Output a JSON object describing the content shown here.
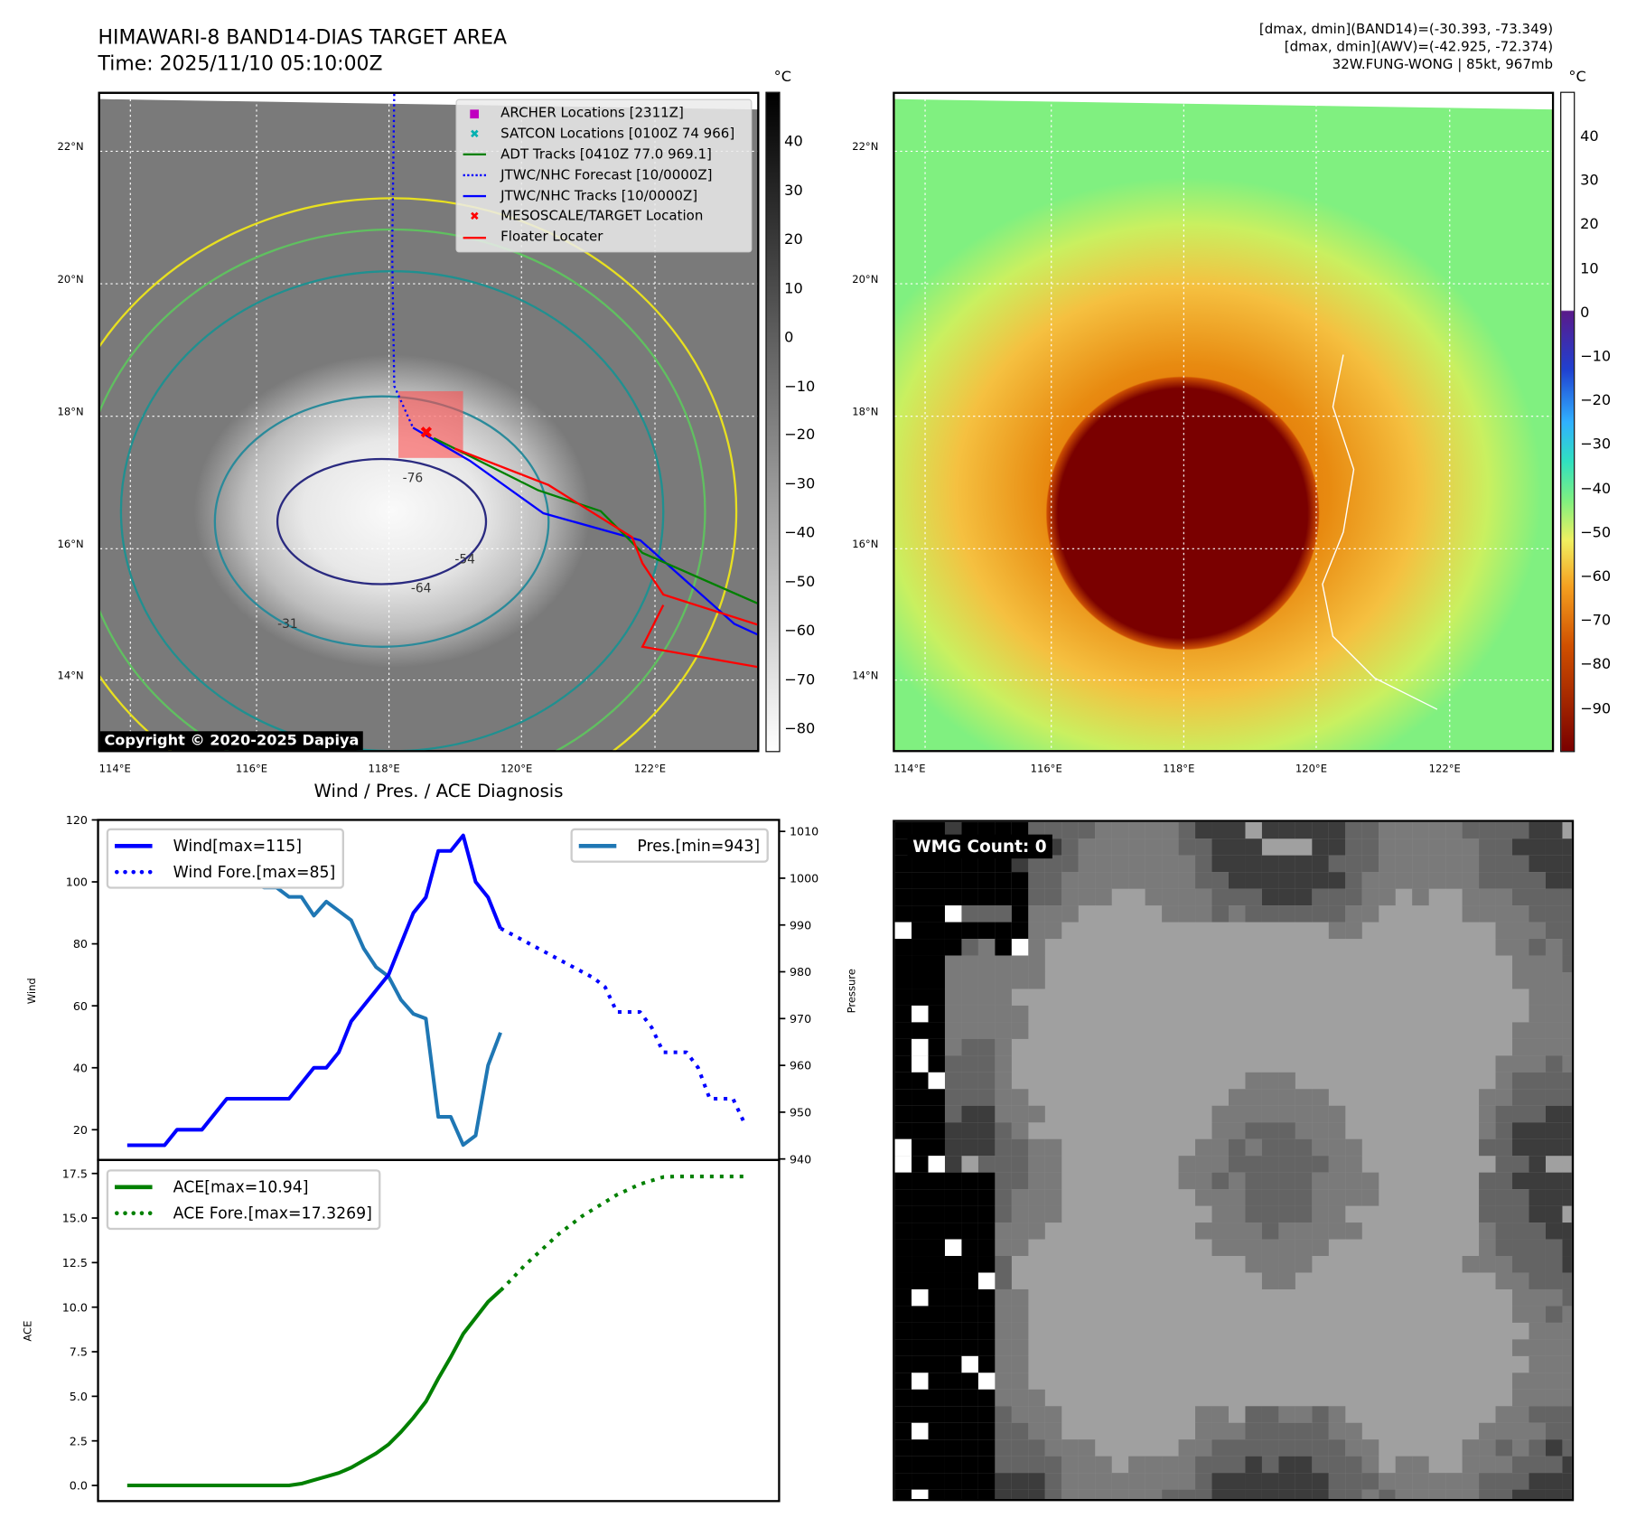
{
  "header": {
    "title": "HIMAWARI-8 BAND14-DIAS TARGET AREA",
    "time": "Time: 2025/11/10 05:10:00Z",
    "info": [
      "[dmax, dmin](BAND14)=(-30.393, -73.349)",
      "[dmax, dmin](AWV)=(-42.925, -72.374)",
      "32W.FUNG-WONG | 85kt, 967mb"
    ]
  },
  "maps": {
    "lat_labels": [
      "22°N",
      "20°N",
      "18°N",
      "16°N",
      "14°N"
    ],
    "lon_labels": [
      "114°E",
      "116°E",
      "118°E",
      "120°E",
      "122°E"
    ],
    "copyright": "Copyright © 2020-2025 Dapiya",
    "contour_labels": [
      "-76",
      "-64",
      "-31",
      "-54"
    ],
    "legend": [
      {
        "label": "ARCHER Locations [2311Z]",
        "color": "#c000c0",
        "symbol": "■"
      },
      {
        "label": "SATCON Locations [0100Z 74 966]",
        "color": "#00b0b0",
        "symbol": "✖"
      },
      {
        "label": "ADT Tracks [0410Z 77.0 969.1]",
        "color": "#008000",
        "symbol": "line"
      },
      {
        "label": "JTWC/NHC Forecast [10/0000Z]",
        "color": "#0000ff",
        "symbol": "dots"
      },
      {
        "label": "JTWC/NHC Tracks [10/0000Z]",
        "color": "#0000ff",
        "symbol": "linedot"
      },
      {
        "label": "MESOSCALE/TARGET Location",
        "color": "#ff0000",
        "symbol": "✖"
      },
      {
        "label": "Floater Locater",
        "color": "#ff0000",
        "symbol": "line"
      }
    ],
    "left_cbar": {
      "unit": "°C",
      "ticks": [
        "40",
        "30",
        "20",
        "10",
        "0",
        "−10",
        "−20",
        "−30",
        "−40",
        "−50",
        "−60",
        "−70",
        "−80"
      ]
    },
    "right_cbar": {
      "unit": "°C",
      "ticks": [
        "40",
        "30",
        "20",
        "10",
        "0",
        "−10",
        "−20",
        "−30",
        "−40",
        "−50",
        "−60",
        "−70",
        "−80",
        "−90"
      ]
    }
  },
  "chart_data": {
    "type": "line",
    "title": "Wind / Pres. / ACE Diagnosis",
    "top": {
      "ylabel": "Wind",
      "y2label": "Pressure",
      "yticks": [
        "120",
        "100",
        "80",
        "60",
        "40",
        "20"
      ],
      "y2ticks": [
        "1010",
        "1000",
        "990",
        "980",
        "970",
        "960",
        "950",
        "940"
      ],
      "ylim": [
        20,
        120
      ],
      "y2lim": [
        940,
        1010
      ],
      "legend_left": [
        "Wind[max=115]",
        "Wind Fore.[max=85]"
      ],
      "legend_right": [
        "Pres.[min=943]"
      ],
      "wind": [
        15,
        15,
        15,
        15,
        20,
        20,
        20,
        25,
        30,
        30,
        30,
        30,
        30,
        30,
        35,
        40,
        40,
        45,
        55,
        60,
        65,
        70,
        80,
        90,
        95,
        110,
        110,
        115,
        100,
        95,
        85
      ],
      "wind_forecast": [
        85,
        83,
        81,
        79,
        77,
        75,
        73,
        71,
        69,
        66,
        58,
        58,
        58,
        53,
        45,
        45,
        45,
        40,
        30,
        30,
        30,
        22
      ],
      "pressure": [
        1009,
        1006,
        1006,
        1006,
        1005,
        1004,
        999,
        1000,
        1000,
        1000,
        999,
        998,
        998,
        996,
        996,
        992,
        995,
        993,
        991,
        985,
        981,
        979,
        974,
        971,
        970,
        949,
        949,
        943,
        945,
        960,
        967
      ]
    },
    "bottom": {
      "ylabel": "ACE",
      "yticks": [
        "17.5",
        "15.0",
        "12.5",
        "10.0",
        "7.5",
        "5.0",
        "2.5",
        "0.0"
      ],
      "ylim": [
        0,
        17.5
      ],
      "legend": [
        "ACE[max=10.94]",
        "ACE Fore.[max=17.3269]"
      ],
      "ace": [
        0,
        0,
        0,
        0,
        0,
        0,
        0,
        0,
        0,
        0,
        0,
        0,
        0,
        0,
        0.1,
        0.3,
        0.5,
        0.7,
        1.0,
        1.4,
        1.8,
        2.3,
        3.0,
        3.8,
        4.7,
        6.0,
        7.2,
        8.5,
        9.4,
        10.3,
        10.94
      ],
      "ace_forecast": [
        10.94,
        11.6,
        12.3,
        12.9,
        13.5,
        14.1,
        14.6,
        15.1,
        15.5,
        15.9,
        16.3,
        16.6,
        16.9,
        17.1,
        17.3,
        17.33,
        17.33,
        17.33,
        17.33,
        17.33,
        17.33,
        17.33
      ]
    },
    "colors": {
      "wind": "#0000ff",
      "pressure": "#1f77b4",
      "ace": "#008000"
    }
  },
  "wmg": {
    "label": "WMG Count: 0"
  }
}
